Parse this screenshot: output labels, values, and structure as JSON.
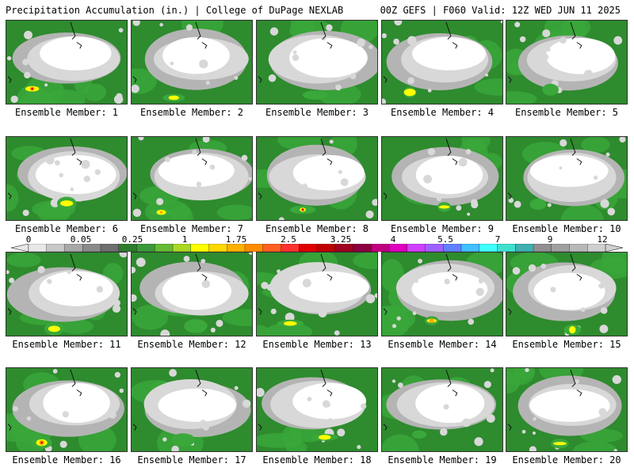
{
  "header": {
    "left_title": "Precipitation Accumulation (in.) | College of DuPage NEXLAB",
    "right_title": "00Z GEFS | F060 Valid: 12Z WED JUN 11 2025"
  },
  "colorbar": {
    "tick_labels": [
      "0",
      "0.05",
      "0.25",
      "1",
      "1.75",
      "2.5",
      "3.25",
      "4",
      "5.5",
      "7",
      "9",
      "12"
    ],
    "colors": [
      "#e8e8e8",
      "#c8c8c8",
      "#a8a8a8",
      "#8a8a8a",
      "#6e6e6e",
      "#2e7d2e",
      "#3a9a3a",
      "#66bb33",
      "#a8d820",
      "#ffff00",
      "#ffd700",
      "#ffb000",
      "#ff8c00",
      "#ff6020",
      "#ff3030",
      "#e00000",
      "#c00000",
      "#a00020",
      "#8b0040",
      "#c00080",
      "#e000c0",
      "#d040ff",
      "#a060ff",
      "#6080ff",
      "#40c0ff",
      "#40ffff",
      "#40e0d0",
      "#40b0b0",
      "#909090",
      "#a0a0a0",
      "#b8b8b8",
      "#d0d0d0"
    ]
  },
  "map_colors": {
    "background_green": "#2e8b2e",
    "light_green": "#3aa83a",
    "gray_light": "#d8d8d8",
    "gray_mid": "#b4b4b4",
    "white": "#ffffff",
    "yellow": "#ffff00",
    "orange": "#ffa500",
    "red": "#e01010"
  },
  "panels": [
    {
      "label": "Ensemble Member: 1"
    },
    {
      "label": "Ensemble Member: 2"
    },
    {
      "label": "Ensemble Member: 3"
    },
    {
      "label": "Ensemble Member: 4"
    },
    {
      "label": "Ensemble Member: 5"
    },
    {
      "label": "Ensemble Member: 6"
    },
    {
      "label": "Ensemble Member: 7"
    },
    {
      "label": "Ensemble Member: 8"
    },
    {
      "label": "Ensemble Member: 9"
    },
    {
      "label": "Ensemble Member: 10"
    },
    {
      "label": "Ensemble Member: 11"
    },
    {
      "label": "Ensemble Member: 12"
    },
    {
      "label": "Ensemble Member: 13"
    },
    {
      "label": "Ensemble Member: 14"
    },
    {
      "label": "Ensemble Member: 15"
    },
    {
      "label": "Ensemble Member: 16"
    },
    {
      "label": "Ensemble Member: 17"
    },
    {
      "label": "Ensemble Member: 18"
    },
    {
      "label": "Ensemble Member: 19"
    },
    {
      "label": "Ensemble Member: 20"
    }
  ]
}
